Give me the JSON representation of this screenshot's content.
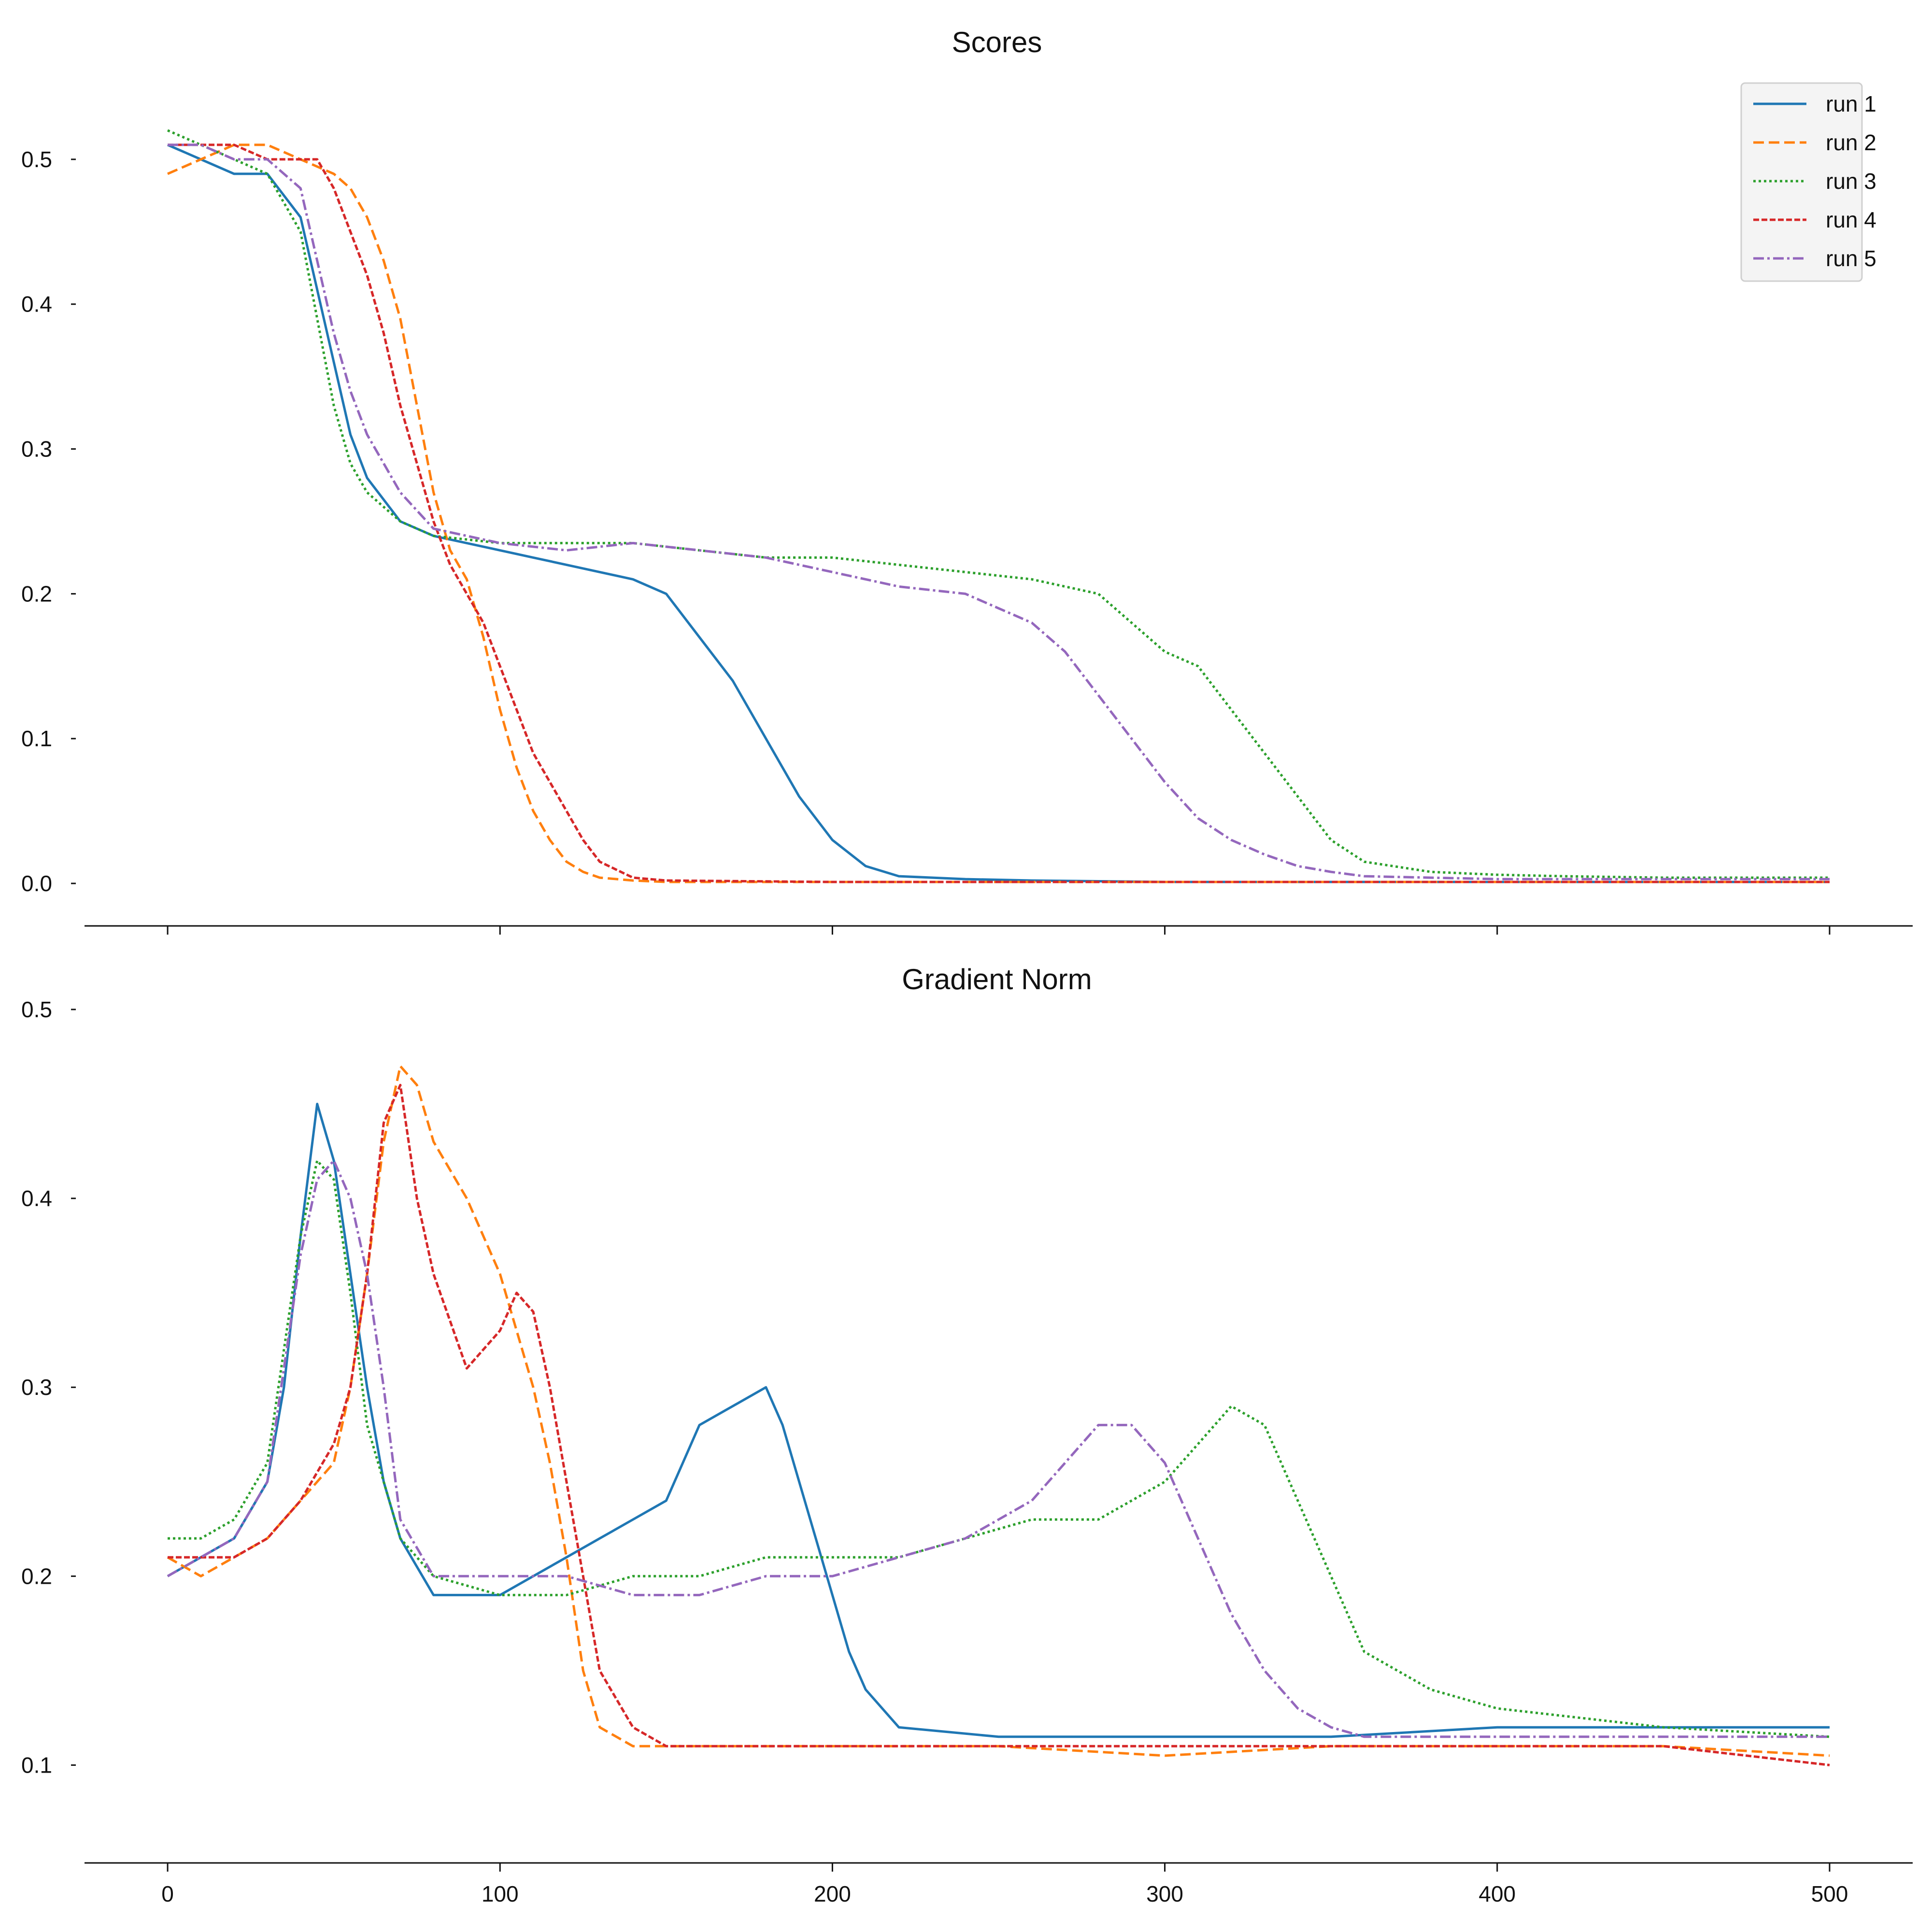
{
  "chart_data": [
    {
      "type": "line",
      "title": "Scores",
      "xlabel": "",
      "ylabel": "",
      "xlim": [
        -25,
        525
      ],
      "ylim": [
        -0.027,
        0.56
      ],
      "xticks": [
        0,
        100,
        200,
        300,
        400,
        500
      ],
      "xtick_labels_shown": false,
      "yticks": [
        0.0,
        0.1,
        0.2,
        0.3,
        0.4,
        0.5
      ],
      "ytick_labels": [
        "0.0",
        "0.1",
        "0.2",
        "0.3",
        "0.4",
        "0.5"
      ],
      "grid": false,
      "legend": "top-right",
      "series": [
        {
          "name": "run 1",
          "color": "#1f77b4",
          "style": "solid",
          "x": [
            0,
            10,
            20,
            30,
            40,
            45,
            50,
            55,
            60,
            70,
            80,
            90,
            100,
            110,
            120,
            130,
            140,
            150,
            160,
            170,
            180,
            190,
            200,
            210,
            220,
            240,
            260,
            300,
            350,
            400,
            450,
            500
          ],
          "y": [
            0.51,
            0.5,
            0.49,
            0.49,
            0.46,
            0.41,
            0.36,
            0.31,
            0.28,
            0.25,
            0.24,
            0.235,
            0.23,
            0.225,
            0.22,
            0.215,
            0.21,
            0.2,
            0.17,
            0.14,
            0.1,
            0.06,
            0.03,
            0.012,
            0.005,
            0.003,
            0.002,
            0.001,
            0.001,
            0.001,
            0.001,
            0.001
          ]
        },
        {
          "name": "run 2",
          "color": "#ff7f0e",
          "style": "dashed",
          "x": [
            0,
            10,
            20,
            30,
            40,
            50,
            55,
            60,
            65,
            70,
            75,
            80,
            85,
            90,
            95,
            100,
            105,
            110,
            115,
            120,
            125,
            130,
            140,
            150,
            200,
            300,
            400,
            500
          ],
          "y": [
            0.49,
            0.5,
            0.51,
            0.51,
            0.5,
            0.49,
            0.48,
            0.46,
            0.43,
            0.39,
            0.33,
            0.27,
            0.23,
            0.21,
            0.17,
            0.12,
            0.08,
            0.05,
            0.03,
            0.015,
            0.008,
            0.004,
            0.002,
            0.001,
            0.001,
            0.001,
            0.001,
            0.001
          ]
        },
        {
          "name": "run 3",
          "color": "#2ca02c",
          "style": "dotted",
          "x": [
            0,
            10,
            20,
            30,
            40,
            45,
            50,
            55,
            60,
            70,
            80,
            100,
            120,
            140,
            160,
            180,
            200,
            220,
            240,
            260,
            270,
            280,
            290,
            300,
            310,
            320,
            330,
            340,
            350,
            360,
            380,
            400,
            420,
            450,
            500
          ],
          "y": [
            0.52,
            0.51,
            0.5,
            0.49,
            0.45,
            0.39,
            0.33,
            0.29,
            0.27,
            0.25,
            0.24,
            0.235,
            0.235,
            0.235,
            0.23,
            0.225,
            0.225,
            0.22,
            0.215,
            0.21,
            0.205,
            0.2,
            0.18,
            0.16,
            0.15,
            0.12,
            0.09,
            0.06,
            0.03,
            0.015,
            0.008,
            0.006,
            0.005,
            0.004,
            0.004
          ]
        },
        {
          "name": "run 4",
          "color": "#d62728",
          "style": "densely-dashed",
          "x": [
            0,
            10,
            20,
            30,
            40,
            45,
            50,
            55,
            60,
            65,
            70,
            75,
            80,
            85,
            90,
            95,
            100,
            105,
            110,
            115,
            120,
            125,
            130,
            140,
            150,
            200,
            300,
            400,
            500
          ],
          "y": [
            0.51,
            0.51,
            0.51,
            0.5,
            0.5,
            0.5,
            0.48,
            0.45,
            0.42,
            0.38,
            0.33,
            0.29,
            0.25,
            0.22,
            0.2,
            0.18,
            0.15,
            0.12,
            0.09,
            0.07,
            0.05,
            0.03,
            0.015,
            0.004,
            0.002,
            0.001,
            0.001,
            0.001,
            0.001
          ]
        },
        {
          "name": "run 5",
          "color": "#9467bd",
          "style": "dashdot",
          "x": [
            0,
            10,
            20,
            30,
            40,
            45,
            50,
            55,
            60,
            70,
            80,
            100,
            120,
            140,
            160,
            180,
            200,
            220,
            240,
            250,
            260,
            270,
            280,
            290,
            300,
            310,
            320,
            330,
            340,
            350,
            360,
            380,
            400,
            450,
            500
          ],
          "y": [
            0.51,
            0.51,
            0.5,
            0.5,
            0.48,
            0.43,
            0.38,
            0.34,
            0.31,
            0.27,
            0.245,
            0.235,
            0.23,
            0.235,
            0.23,
            0.225,
            0.215,
            0.205,
            0.2,
            0.19,
            0.18,
            0.16,
            0.13,
            0.1,
            0.07,
            0.045,
            0.03,
            0.02,
            0.012,
            0.008,
            0.005,
            0.004,
            0.003,
            0.003,
            0.003
          ]
        }
      ]
    },
    {
      "type": "line",
      "title": "Gradient Norm",
      "xlabel": "",
      "ylabel": "",
      "xlim": [
        -25,
        525
      ],
      "ylim": [
        0.05,
        0.5
      ],
      "xticks": [
        0,
        100,
        200,
        300,
        400,
        500
      ],
      "xtick_labels": [
        "0",
        "100",
        "200",
        "300",
        "400",
        "500"
      ],
      "yticks": [
        0.1,
        0.2,
        0.3,
        0.4,
        0.5
      ],
      "ytick_labels": [
        "0.1",
        "0.2",
        "0.3",
        "0.4",
        "0.5"
      ],
      "grid": false,
      "series": [
        {
          "name": "run 1",
          "color": "#1f77b4",
          "style": "solid",
          "x": [
            0,
            10,
            20,
            30,
            35,
            40,
            45,
            50,
            55,
            60,
            65,
            70,
            80,
            90,
            100,
            110,
            120,
            130,
            140,
            150,
            155,
            160,
            170,
            180,
            185,
            190,
            195,
            200,
            205,
            210,
            220,
            250,
            300,
            350,
            400,
            450,
            500
          ],
          "y": [
            0.2,
            0.21,
            0.22,
            0.25,
            0.3,
            0.38,
            0.45,
            0.42,
            0.36,
            0.3,
            0.25,
            0.22,
            0.19,
            0.19,
            0.19,
            0.2,
            0.21,
            0.22,
            0.23,
            0.24,
            0.26,
            0.28,
            0.29,
            0.3,
            0.28,
            0.25,
            0.22,
            0.19,
            0.16,
            0.14,
            0.12,
            0.115,
            0.115,
            0.115,
            0.12,
            0.12,
            0.12
          ]
        },
        {
          "name": "run 2",
          "color": "#ff7f0e",
          "style": "dashed",
          "x": [
            0,
            10,
            20,
            30,
            40,
            50,
            55,
            60,
            65,
            70,
            75,
            80,
            90,
            100,
            110,
            115,
            120,
            125,
            130,
            140,
            150,
            200,
            250,
            300,
            350,
            400,
            450,
            500
          ],
          "y": [
            0.21,
            0.2,
            0.21,
            0.22,
            0.24,
            0.26,
            0.3,
            0.36,
            0.43,
            0.47,
            0.46,
            0.43,
            0.4,
            0.36,
            0.3,
            0.26,
            0.21,
            0.15,
            0.12,
            0.11,
            0.11,
            0.11,
            0.11,
            0.105,
            0.11,
            0.11,
            0.11,
            0.105
          ]
        },
        {
          "name": "run 3",
          "color": "#2ca02c",
          "style": "dotted",
          "x": [
            0,
            10,
            20,
            30,
            35,
            40,
            45,
            50,
            55,
            60,
            70,
            80,
            100,
            120,
            140,
            160,
            180,
            200,
            220,
            240,
            260,
            280,
            300,
            310,
            320,
            330,
            340,
            350,
            360,
            380,
            400,
            450,
            500
          ],
          "y": [
            0.22,
            0.22,
            0.23,
            0.26,
            0.32,
            0.38,
            0.42,
            0.41,
            0.35,
            0.28,
            0.22,
            0.2,
            0.19,
            0.19,
            0.2,
            0.2,
            0.21,
            0.21,
            0.21,
            0.22,
            0.23,
            0.23,
            0.25,
            0.27,
            0.29,
            0.28,
            0.24,
            0.2,
            0.16,
            0.14,
            0.13,
            0.12,
            0.115
          ]
        },
        {
          "name": "run 4",
          "color": "#d62728",
          "style": "densely-dashed",
          "x": [
            0,
            10,
            20,
            30,
            40,
            50,
            55,
            60,
            65,
            70,
            75,
            80,
            90,
            100,
            105,
            110,
            115,
            120,
            125,
            130,
            140,
            150,
            200,
            250,
            300,
            350,
            400,
            450,
            500
          ],
          "y": [
            0.21,
            0.21,
            0.21,
            0.22,
            0.24,
            0.27,
            0.3,
            0.36,
            0.44,
            0.46,
            0.4,
            0.36,
            0.31,
            0.33,
            0.35,
            0.34,
            0.3,
            0.25,
            0.2,
            0.15,
            0.12,
            0.11,
            0.11,
            0.11,
            0.11,
            0.11,
            0.11,
            0.11,
            0.1
          ]
        },
        {
          "name": "run 5",
          "color": "#9467bd",
          "style": "dashdot",
          "x": [
            0,
            10,
            20,
            30,
            35,
            40,
            45,
            50,
            55,
            60,
            65,
            70,
            80,
            100,
            120,
            140,
            160,
            180,
            200,
            220,
            240,
            250,
            260,
            270,
            280,
            290,
            300,
            310,
            320,
            330,
            340,
            350,
            360,
            380,
            400,
            450,
            500
          ],
          "y": [
            0.2,
            0.21,
            0.22,
            0.25,
            0.31,
            0.37,
            0.41,
            0.42,
            0.4,
            0.36,
            0.3,
            0.23,
            0.2,
            0.2,
            0.2,
            0.19,
            0.19,
            0.2,
            0.2,
            0.21,
            0.22,
            0.23,
            0.24,
            0.26,
            0.28,
            0.28,
            0.26,
            0.22,
            0.18,
            0.15,
            0.13,
            0.12,
            0.115,
            0.115,
            0.115,
            0.115,
            0.115
          ]
        }
      ]
    }
  ]
}
